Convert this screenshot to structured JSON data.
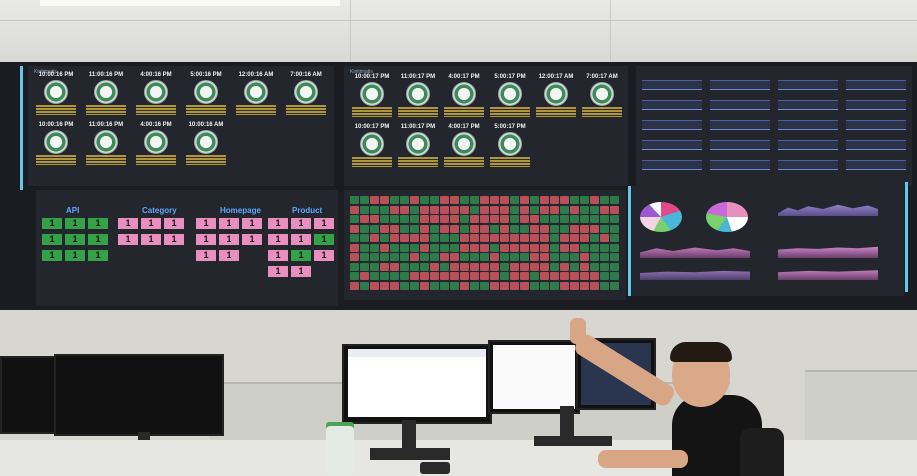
{
  "gauge_panel_left": {
    "title": "Kinitimatis",
    "row1_times": [
      "10:00:16 PM",
      "11:00:16 PM",
      "4:00:16 PM",
      "5:00:16 PM",
      "12:00:16 AM",
      "7:00:16 AM"
    ],
    "row2_times": [
      "10:00:16 PM",
      "11:00:16 PM",
      "4:00:16 PM",
      "10:00:16 AM"
    ]
  },
  "gauge_panel_middle": {
    "title": "Kinitimatis",
    "row1_times": [
      "10:00:17 PM",
      "11:00:17 PM",
      "4:00:17 PM",
      "5:00:17 PM",
      "12:00:17 AM",
      "7:00:17 AM"
    ],
    "row2_times": [
      "10:00:17 PM",
      "11:00:17 PM",
      "4:00:17 PM",
      "5:00:17 PM"
    ]
  },
  "api_panel": {
    "groups": [
      {
        "title": "API",
        "tiles": [
          {
            "v": "1",
            "c": "g"
          },
          {
            "v": "1",
            "c": "g"
          },
          {
            "v": "1",
            "c": "g"
          },
          {
            "v": "1",
            "c": "g"
          },
          {
            "v": "1",
            "c": "g"
          },
          {
            "v": "1",
            "c": "g"
          },
          {
            "v": "1",
            "c": "g"
          },
          {
            "v": "1",
            "c": "g"
          },
          {
            "v": "1",
            "c": "g"
          }
        ]
      },
      {
        "title": "Category",
        "tiles": [
          {
            "v": "1",
            "c": "p"
          },
          {
            "v": "1",
            "c": "p"
          },
          {
            "v": "1",
            "c": "p"
          },
          {
            "v": "1",
            "c": "p"
          },
          {
            "v": "1",
            "c": "p"
          },
          {
            "v": "1",
            "c": "p"
          }
        ]
      },
      {
        "title": "Homepage",
        "tiles": [
          {
            "v": "1",
            "c": "p"
          },
          {
            "v": "1",
            "c": "p"
          },
          {
            "v": "1",
            "c": "p"
          },
          {
            "v": "1",
            "c": "p"
          },
          {
            "v": "1",
            "c": "p"
          },
          {
            "v": "1",
            "c": "p"
          },
          {
            "v": "1",
            "c": "p"
          },
          {
            "v": "1",
            "c": "p"
          }
        ]
      },
      {
        "title": "Product",
        "tiles": [
          {
            "v": "1",
            "c": "p"
          },
          {
            "v": "1",
            "c": "p"
          },
          {
            "v": "1",
            "c": "p"
          },
          {
            "v": "1",
            "c": "p"
          },
          {
            "v": "1",
            "c": "p"
          },
          {
            "v": "1",
            "c": "g"
          },
          {
            "v": "1",
            "c": "p"
          },
          {
            "v": "1",
            "c": "g"
          },
          {
            "v": "1",
            "c": "p"
          },
          {
            "v": "1",
            "c": "p"
          },
          {
            "v": "1",
            "c": "p"
          }
        ]
      }
    ]
  },
  "colors": {
    "tile_green": "#35a24a",
    "tile_pink": "#e98fc0",
    "group_title": "#5fa8ff",
    "heat_red": "#b8505a",
    "heat_green": "#2f7a4a"
  }
}
